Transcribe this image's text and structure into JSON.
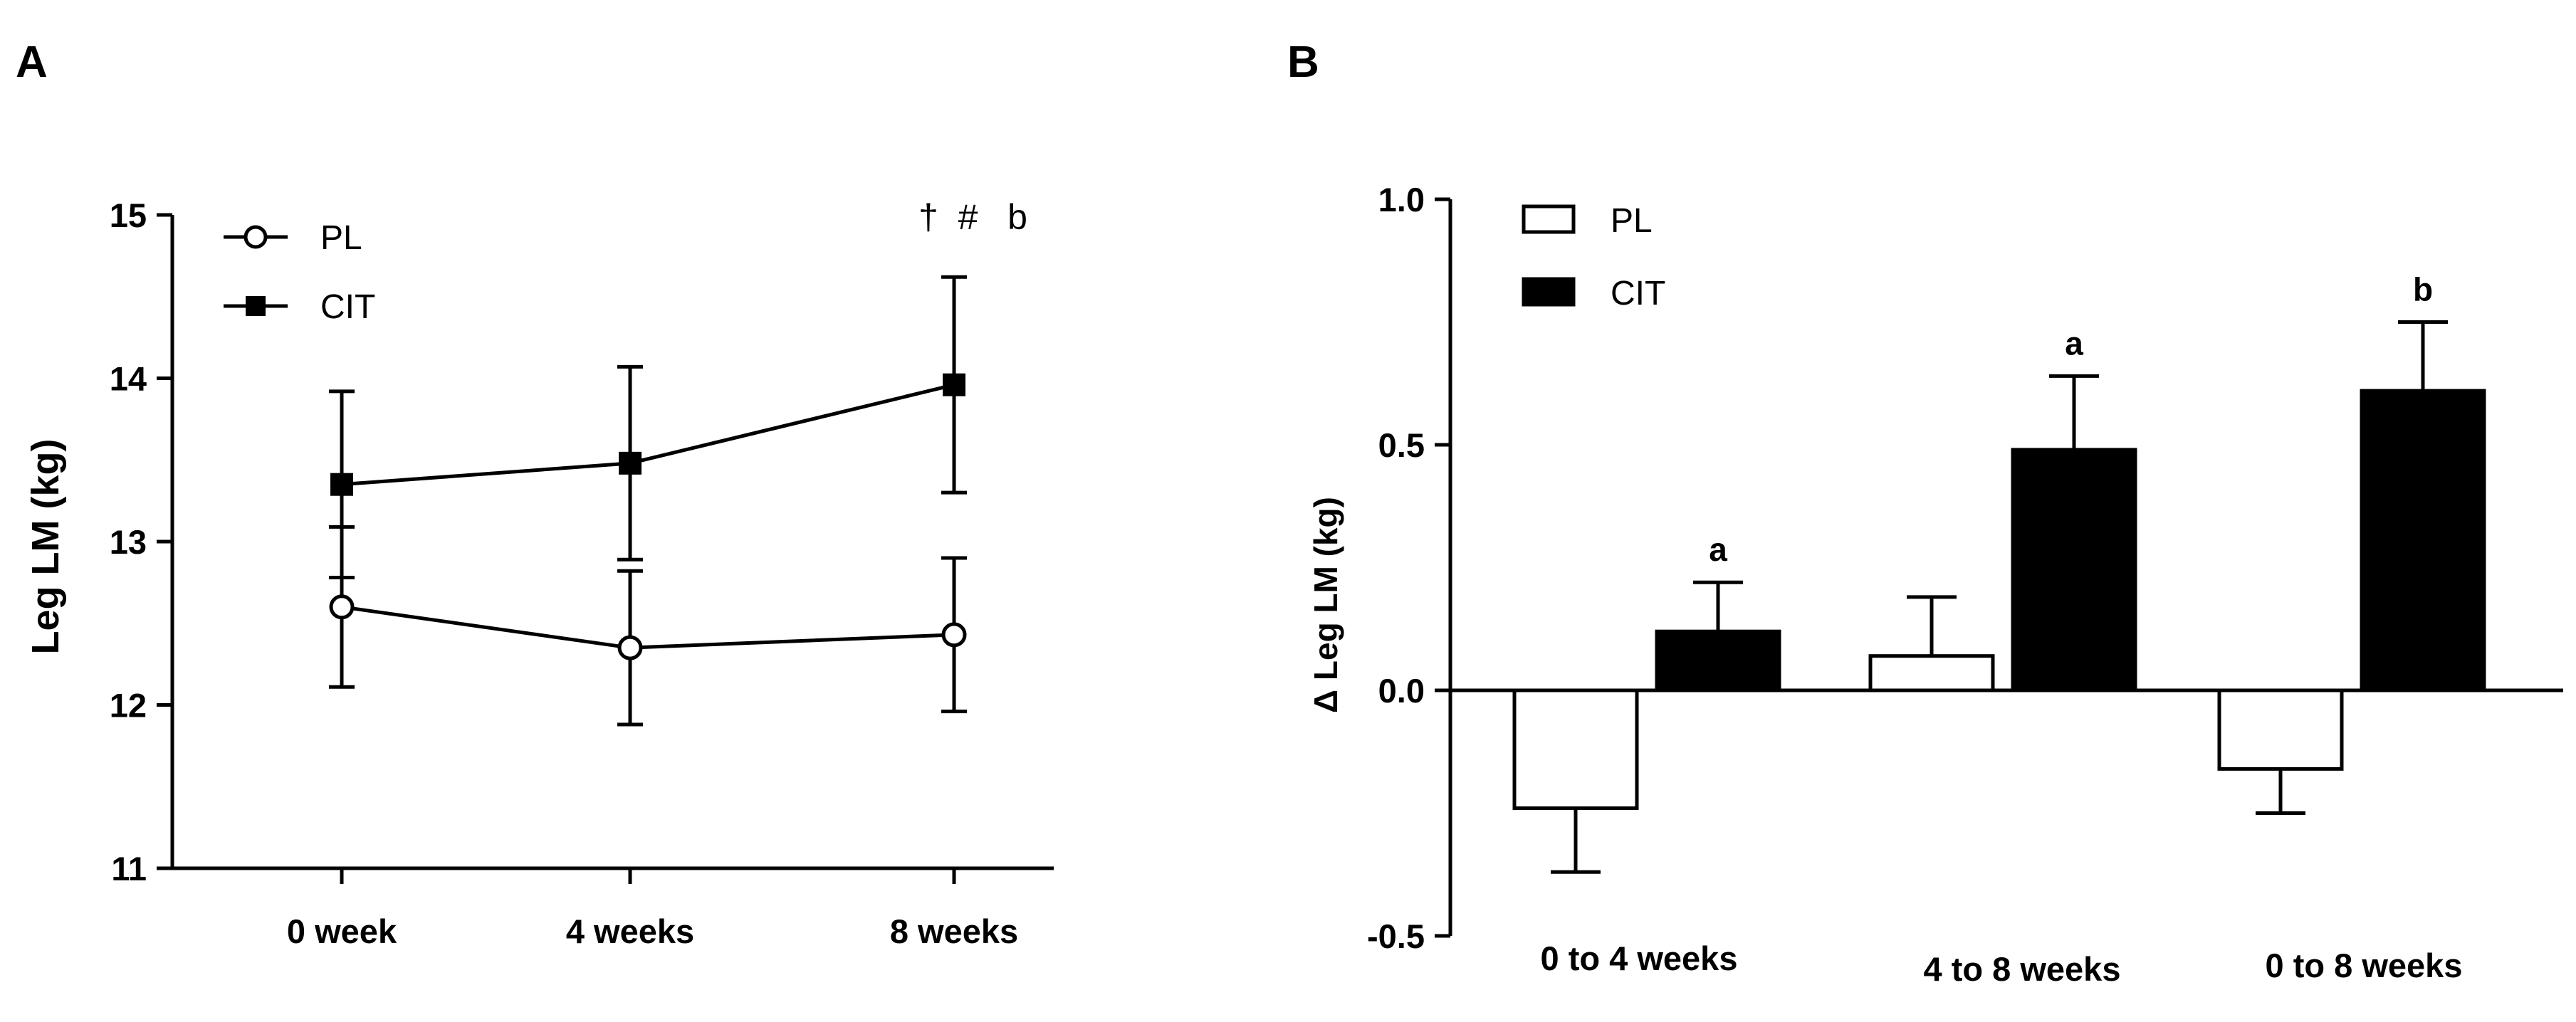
{
  "chart_data": [
    {
      "panel": "A",
      "type": "line",
      "title": "",
      "xlabel": "",
      "ylabel": "Leg LM  (kg)",
      "categories": [
        "0 week",
        "4 weeks",
        "8 weeks"
      ],
      "ylim": [
        11,
        15
      ],
      "yticks": [
        "11",
        "12",
        "13",
        "14",
        "15"
      ],
      "series": [
        {
          "name": "PL",
          "marker": "open-circle",
          "values": [
            12.6,
            12.35,
            12.43
          ],
          "errors": [
            0.49,
            0.47,
            0.47
          ]
        },
        {
          "name": "CIT",
          "marker": "filled-square",
          "values": [
            13.35,
            13.48,
            13.96
          ],
          "errors": [
            0.57,
            0.59,
            0.66
          ]
        }
      ],
      "annotation": "†  #   b",
      "legend_position": "top-left"
    },
    {
      "panel": "B",
      "type": "bar",
      "title": "",
      "xlabel": "",
      "ylabel": "Δ Leg LM (kg)",
      "categories": [
        "0 to 4 weeks",
        "4 to 8 weeks",
        "0 to 8 weeks"
      ],
      "ylim": [
        -0.5,
        1.0
      ],
      "yticks": [
        "-0.5",
        "0.0",
        "0.5",
        "1.0"
      ],
      "series": [
        {
          "name": "PL",
          "fill": "#ffffff",
          "values": [
            -0.24,
            0.07,
            -0.16
          ],
          "errors": [
            0.13,
            0.12,
            0.09
          ]
        },
        {
          "name": "CIT",
          "fill": "#000000",
          "values": [
            0.12,
            0.49,
            0.61
          ],
          "errors": [
            0.1,
            0.15,
            0.14
          ]
        }
      ],
      "bar_annotations": [
        "a",
        "a",
        "b"
      ],
      "legend_position": "top-left"
    }
  ]
}
